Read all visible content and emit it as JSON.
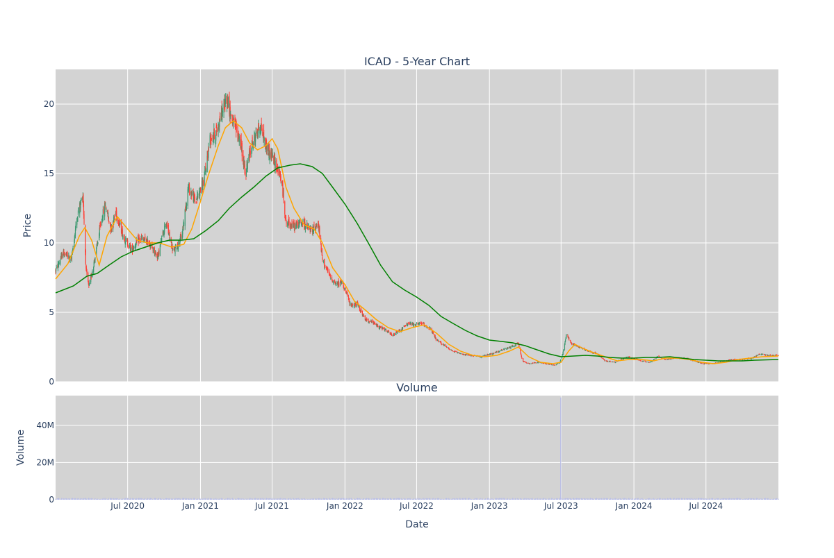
{
  "title": "ICAD - 5-Year Chart",
  "price_axis": {
    "label": "Price",
    "ticks": [
      "0",
      "5",
      "10",
      "15",
      "20"
    ]
  },
  "volume_panel": {
    "title": "Volume",
    "ylabel": "Volume",
    "ticks": [
      "0",
      "20M",
      "40M"
    ]
  },
  "x_axis": {
    "label": "Date",
    "ticks": [
      "Jul 2020",
      "Jan 2021",
      "Jul 2021",
      "Jan 2022",
      "Jul 2022",
      "Jan 2023",
      "Jul 2023",
      "Jan 2024",
      "Jul 2024"
    ]
  },
  "colors": {
    "plot_bg": "#d3d3d3",
    "grid": "#ffffff",
    "candle_up": "#3d9970",
    "candle_down": "#ff4136",
    "ma_short": "#ffa500",
    "ma_long": "#008000",
    "volume_bar": "#b8bde8",
    "text": "#2a3f5f"
  },
  "chart_data": [
    {
      "type": "candlestick",
      "title": "ICAD - 5-Year Chart",
      "xlabel": "",
      "ylabel": "Price",
      "x_range": [
        "2020-01-01",
        "2024-12-31"
      ],
      "ylim": [
        0,
        22.5
      ],
      "y_ticks": [
        0,
        5,
        10,
        15,
        20
      ],
      "x_ticks": [
        "2020-07-01",
        "2021-01-01",
        "2021-07-01",
        "2022-01-01",
        "2022-07-01",
        "2023-01-01",
        "2023-07-01",
        "2024-01-01",
        "2024-07-01"
      ],
      "grid": true,
      "legend": "none",
      "series": [
        {
          "type": "candlestick",
          "close_points": [
            [
              "2020-01-01",
              8.0
            ],
            [
              "2020-01-20",
              9.3
            ],
            [
              "2020-02-10",
              8.8
            ],
            [
              "2020-02-25",
              12.0
            ],
            [
              "2020-03-10",
              13.5
            ],
            [
              "2020-03-18",
              8.0
            ],
            [
              "2020-03-25",
              6.8
            ],
            [
              "2020-04-10",
              9.0
            ],
            [
              "2020-04-25",
              11.5
            ],
            [
              "2020-05-05",
              12.8
            ],
            [
              "2020-05-20",
              11.0
            ],
            [
              "2020-06-01",
              12.2
            ],
            [
              "2020-06-20",
              10.5
            ],
            [
              "2020-07-10",
              9.5
            ],
            [
              "2020-08-01",
              10.3
            ],
            [
              "2020-08-25",
              10.0
            ],
            [
              "2020-09-15",
              9.0
            ],
            [
              "2020-10-05",
              11.5
            ],
            [
              "2020-10-25",
              9.3
            ],
            [
              "2020-11-15",
              10.5
            ],
            [
              "2020-12-01",
              14.0
            ],
            [
              "2020-12-20",
              13.0
            ],
            [
              "2021-01-10",
              14.5
            ],
            [
              "2021-01-25",
              17.5
            ],
            [
              "2021-02-10",
              18.0
            ],
            [
              "2021-02-25",
              19.5
            ],
            [
              "2021-03-10",
              20.5
            ],
            [
              "2021-03-20",
              19.0
            ],
            [
              "2021-04-10",
              17.5
            ],
            [
              "2021-04-25",
              15.0
            ],
            [
              "2021-05-10",
              17.0
            ],
            [
              "2021-06-01",
              18.5
            ],
            [
              "2021-06-15",
              17.0
            ],
            [
              "2021-07-05",
              16.0
            ],
            [
              "2021-07-25",
              14.5
            ],
            [
              "2021-08-05",
              11.5
            ],
            [
              "2021-08-25",
              11.2
            ],
            [
              "2021-09-15",
              11.5
            ],
            [
              "2021-10-10",
              10.8
            ],
            [
              "2021-10-25",
              11.5
            ],
            [
              "2021-11-05",
              8.8
            ],
            [
              "2021-11-25",
              7.5
            ],
            [
              "2021-12-10",
              7.0
            ],
            [
              "2021-12-25",
              7.2
            ],
            [
              "2022-01-15",
              5.5
            ],
            [
              "2022-02-01",
              5.6
            ],
            [
              "2022-02-20",
              4.5
            ],
            [
              "2022-03-10",
              4.3
            ],
            [
              "2022-03-25",
              4.0
            ],
            [
              "2022-04-15",
              3.7
            ],
            [
              "2022-05-01",
              3.3
            ],
            [
              "2022-05-20",
              3.7
            ],
            [
              "2022-06-10",
              4.2
            ],
            [
              "2022-06-25",
              4.1
            ],
            [
              "2022-07-15",
              4.2
            ],
            [
              "2022-08-05",
              3.8
            ],
            [
              "2022-08-20",
              3.0
            ],
            [
              "2022-09-10",
              2.6
            ],
            [
              "2022-10-01",
              2.2
            ],
            [
              "2022-10-20",
              2.0
            ],
            [
              "2022-11-15",
              1.9
            ],
            [
              "2022-12-10",
              1.8
            ],
            [
              "2023-01-05",
              2.0
            ],
            [
              "2023-01-25",
              2.2
            ],
            [
              "2023-02-15",
              2.4
            ],
            [
              "2023-03-05",
              2.6
            ],
            [
              "2023-03-15",
              2.8
            ],
            [
              "2023-03-25",
              1.5
            ],
            [
              "2023-04-10",
              1.3
            ],
            [
              "2023-05-05",
              1.4
            ],
            [
              "2023-05-25",
              1.3
            ],
            [
              "2023-06-15",
              1.2
            ],
            [
              "2023-06-28",
              1.4
            ],
            [
              "2023-07-05",
              2.0
            ],
            [
              "2023-07-15",
              3.5
            ],
            [
              "2023-07-25",
              2.8
            ],
            [
              "2023-08-15",
              2.5
            ],
            [
              "2023-09-10",
              2.2
            ],
            [
              "2023-10-01",
              2.0
            ],
            [
              "2023-10-20",
              1.5
            ],
            [
              "2023-11-15",
              1.4
            ],
            [
              "2023-12-15",
              1.8
            ],
            [
              "2024-01-20",
              1.5
            ],
            [
              "2024-02-10",
              1.4
            ],
            [
              "2024-03-01",
              1.8
            ],
            [
              "2024-03-20",
              1.6
            ],
            [
              "2024-04-15",
              1.7
            ],
            [
              "2024-05-10",
              1.7
            ],
            [
              "2024-06-01",
              1.5
            ],
            [
              "2024-06-25",
              1.3
            ],
            [
              "2024-07-20",
              1.3
            ],
            [
              "2024-08-15",
              1.5
            ],
            [
              "2024-09-10",
              1.6
            ],
            [
              "2024-10-01",
              1.6
            ],
            [
              "2024-10-25",
              1.7
            ],
            [
              "2024-11-15",
              2.0
            ],
            [
              "2024-12-05",
              1.9
            ],
            [
              "2024-12-31",
              1.9
            ]
          ]
        },
        {
          "type": "line",
          "color": "#ffa500",
          "points": [
            [
              "2020-01-01",
              7.4
            ],
            [
              "2020-02-01",
              8.5
            ],
            [
              "2020-03-01",
              10.5
            ],
            [
              "2020-03-15",
              11.1
            ],
            [
              "2020-04-01",
              10.2
            ],
            [
              "2020-04-20",
              8.4
            ],
            [
              "2020-05-10",
              10.5
            ],
            [
              "2020-06-05",
              11.9
            ],
            [
              "2020-07-01",
              11.0
            ],
            [
              "2020-07-25",
              10.2
            ],
            [
              "2020-08-20",
              10.0
            ],
            [
              "2020-09-20",
              10.0
            ],
            [
              "2020-10-20",
              9.7
            ],
            [
              "2020-11-20",
              9.9
            ],
            [
              "2020-12-10",
              11.0
            ],
            [
              "2021-01-01",
              13.0
            ],
            [
              "2021-01-20",
              14.8
            ],
            [
              "2021-02-15",
              17.0
            ],
            [
              "2021-03-05",
              18.3
            ],
            [
              "2021-03-25",
              18.8
            ],
            [
              "2021-04-15",
              18.3
            ],
            [
              "2021-05-05",
              17.2
            ],
            [
              "2021-05-25",
              16.7
            ],
            [
              "2021-06-15",
              17.0
            ],
            [
              "2021-07-01",
              17.5
            ],
            [
              "2021-07-15",
              16.8
            ],
            [
              "2021-08-05",
              14.0
            ],
            [
              "2021-08-25",
              12.5
            ],
            [
              "2021-09-20",
              11.3
            ],
            [
              "2021-10-15",
              11.0
            ],
            [
              "2021-11-05",
              10.0
            ],
            [
              "2021-12-01",
              8.2
            ],
            [
              "2022-01-01",
              7.0
            ],
            [
              "2022-01-25",
              5.8
            ],
            [
              "2022-02-20",
              5.2
            ],
            [
              "2022-03-20",
              4.5
            ],
            [
              "2022-04-20",
              3.9
            ],
            [
              "2022-05-20",
              3.6
            ],
            [
              "2022-06-20",
              3.9
            ],
            [
              "2022-07-20",
              4.1
            ],
            [
              "2022-08-20",
              3.5
            ],
            [
              "2022-09-20",
              2.7
            ],
            [
              "2022-10-20",
              2.2
            ],
            [
              "2022-11-20",
              1.9
            ],
            [
              "2022-12-20",
              1.8
            ],
            [
              "2023-01-20",
              1.9
            ],
            [
              "2023-02-20",
              2.2
            ],
            [
              "2023-03-15",
              2.5
            ],
            [
              "2023-04-10",
              1.8
            ],
            [
              "2023-05-10",
              1.4
            ],
            [
              "2023-06-10",
              1.3
            ],
            [
              "2023-07-01",
              1.4
            ],
            [
              "2023-07-20",
              2.2
            ],
            [
              "2023-08-05",
              2.7
            ],
            [
              "2023-08-25",
              2.4
            ],
            [
              "2023-09-20",
              2.1
            ],
            [
              "2023-10-20",
              1.8
            ],
            [
              "2023-11-20",
              1.5
            ],
            [
              "2023-12-20",
              1.6
            ],
            [
              "2024-01-20",
              1.6
            ],
            [
              "2024-02-20",
              1.5
            ],
            [
              "2024-03-20",
              1.7
            ],
            [
              "2024-04-20",
              1.7
            ],
            [
              "2024-05-20",
              1.6
            ],
            [
              "2024-06-20",
              1.4
            ],
            [
              "2024-07-20",
              1.3
            ],
            [
              "2024-08-20",
              1.4
            ],
            [
              "2024-09-20",
              1.6
            ],
            [
              "2024-10-20",
              1.7
            ],
            [
              "2024-11-20",
              1.8
            ],
            [
              "2024-12-31",
              1.85
            ]
          ]
        },
        {
          "type": "line",
          "color": "#008000",
          "points": [
            [
              "2020-01-01",
              6.4
            ],
            [
              "2020-02-15",
              6.9
            ],
            [
              "2020-03-20",
              7.6
            ],
            [
              "2020-04-15",
              7.8
            ],
            [
              "2020-05-15",
              8.4
            ],
            [
              "2020-06-15",
              9.0
            ],
            [
              "2020-07-15",
              9.4
            ],
            [
              "2020-08-15",
              9.7
            ],
            [
              "2020-09-15",
              10.0
            ],
            [
              "2020-10-15",
              10.2
            ],
            [
              "2020-11-15",
              10.2
            ],
            [
              "2020-12-15",
              10.3
            ],
            [
              "2021-01-15",
              10.9
            ],
            [
              "2021-02-15",
              11.6
            ],
            [
              "2021-03-15",
              12.5
            ],
            [
              "2021-04-15",
              13.3
            ],
            [
              "2021-05-15",
              14.0
            ],
            [
              "2021-06-15",
              14.8
            ],
            [
              "2021-07-15",
              15.4
            ],
            [
              "2021-08-15",
              15.6
            ],
            [
              "2021-09-10",
              15.7
            ],
            [
              "2021-10-10",
              15.5
            ],
            [
              "2021-11-05",
              15.0
            ],
            [
              "2021-12-01",
              14.0
            ],
            [
              "2022-01-01",
              12.8
            ],
            [
              "2022-02-01",
              11.4
            ],
            [
              "2022-03-01",
              10.0
            ],
            [
              "2022-04-01",
              8.4
            ],
            [
              "2022-05-01",
              7.2
            ],
            [
              "2022-06-01",
              6.6
            ],
            [
              "2022-07-01",
              6.1
            ],
            [
              "2022-08-01",
              5.5
            ],
            [
              "2022-09-01",
              4.7
            ],
            [
              "2022-10-01",
              4.2
            ],
            [
              "2022-11-01",
              3.7
            ],
            [
              "2022-12-01",
              3.3
            ],
            [
              "2023-01-01",
              3.0
            ],
            [
              "2023-02-01",
              2.9
            ],
            [
              "2023-03-01",
              2.8
            ],
            [
              "2023-04-01",
              2.6
            ],
            [
              "2023-05-01",
              2.3
            ],
            [
              "2023-06-01",
              2.0
            ],
            [
              "2023-07-01",
              1.8
            ],
            [
              "2023-08-01",
              1.85
            ],
            [
              "2023-09-01",
              1.9
            ],
            [
              "2023-10-01",
              1.85
            ],
            [
              "2023-11-01",
              1.75
            ],
            [
              "2023-12-01",
              1.7
            ],
            [
              "2024-01-01",
              1.7
            ],
            [
              "2024-02-01",
              1.75
            ],
            [
              "2024-03-01",
              1.75
            ],
            [
              "2024-04-01",
              1.8
            ],
            [
              "2024-05-01",
              1.7
            ],
            [
              "2024-06-01",
              1.6
            ],
            [
              "2024-07-01",
              1.55
            ],
            [
              "2024-08-01",
              1.5
            ],
            [
              "2024-09-01",
              1.5
            ],
            [
              "2024-10-01",
              1.5
            ],
            [
              "2024-11-01",
              1.55
            ],
            [
              "2024-12-31",
              1.6
            ]
          ]
        }
      ]
    },
    {
      "type": "bar",
      "title": "Volume",
      "ylabel": "Volume",
      "xlabel": "Date",
      "x_range": [
        "2020-01-01",
        "2024-12-31"
      ],
      "ylim": [
        0,
        56000000
      ],
      "y_ticks": [
        0,
        20000000,
        40000000
      ],
      "grid": true,
      "baseline_volume_approx": 500000,
      "spikes": [
        [
          "2023-06-30",
          55000000
        ]
      ]
    }
  ]
}
